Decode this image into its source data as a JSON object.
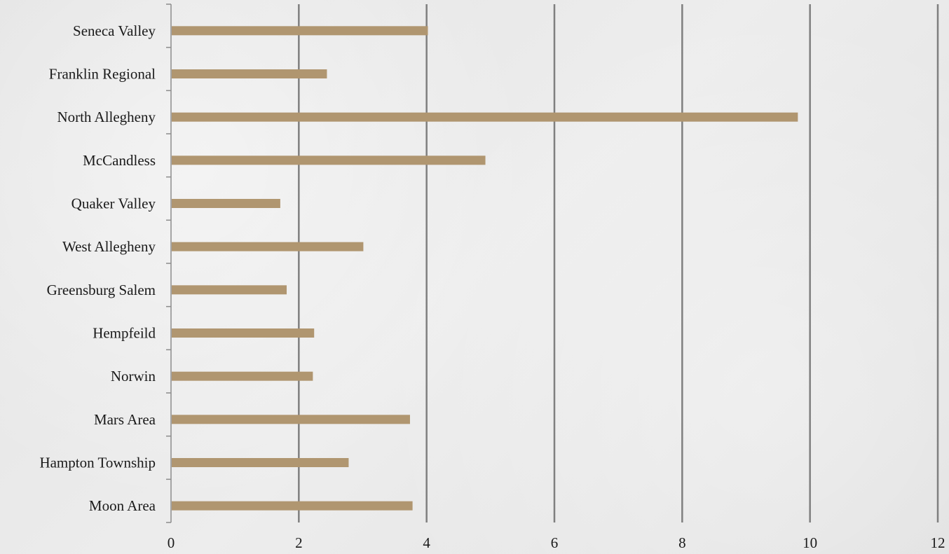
{
  "chart_data": {
    "type": "bar",
    "orientation": "horizontal",
    "categories": [
      "Moon Area",
      "Hampton Township",
      "Mars Area",
      "Norwin",
      "Hempfeild",
      "Greensburg Salem",
      "West Allegheny",
      "Quaker Valley",
      "McCandless",
      "North Allegheny",
      "Franklin Regional",
      "Seneca Valley"
    ],
    "values": [
      3.78,
      2.78,
      3.74,
      2.22,
      2.24,
      1.81,
      3.01,
      1.71,
      4.92,
      9.81,
      2.44,
      4.02
    ],
    "xticks": [
      "0",
      "2",
      "4",
      "6",
      "8",
      "10",
      "12"
    ],
    "xlim": [
      0,
      12
    ],
    "title": "",
    "xlabel": "",
    "ylabel": "",
    "grid": "vertical",
    "legend": "none",
    "colors": {
      "bar": "#b09670",
      "gridline": "#7f7f7f",
      "axis": "#8c8c8c",
      "text": "#1a1a1a"
    }
  }
}
